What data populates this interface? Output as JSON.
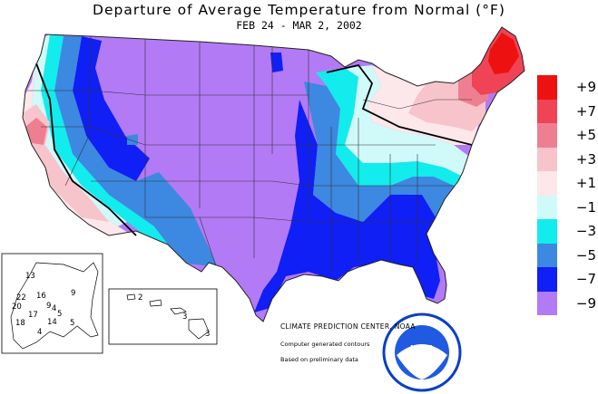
{
  "title": "Departure of Average Temperature from Normal (°F)",
  "subtitle": "FEB 24 - MAR  2, 2002",
  "legend": {
    "items": [
      {
        "label": "+9",
        "color": "#ee1111"
      },
      {
        "label": "+7",
        "color": "#ee4455"
      },
      {
        "label": "+5",
        "color": "#ee7f90"
      },
      {
        "label": "+3",
        "color": "#f7c4cc"
      },
      {
        "label": "+1",
        "color": "#fce7ea"
      },
      {
        "label": "−1",
        "color": "#d0fafa"
      },
      {
        "label": "−3",
        "color": "#12ecec"
      },
      {
        "label": "−5",
        "color": "#3d88e0"
      },
      {
        "label": "−7",
        "color": "#0f1ff5"
      },
      {
        "label": "−9",
        "color": "#b37af5"
      }
    ]
  },
  "credits": {
    "center": "CLIMATE PREDICTION CENTER, NOAA",
    "line1": "Computer generated contours",
    "line2": "Based on preliminary data"
  },
  "logo": {
    "text": "NOAA"
  },
  "alaska_values": [
    "13",
    "9",
    "22",
    "16",
    "9",
    "20",
    "18",
    "17",
    "4",
    "4",
    "5",
    "5",
    "14"
  ],
  "hawaii_values": [
    "2",
    "3",
    "3"
  ]
}
